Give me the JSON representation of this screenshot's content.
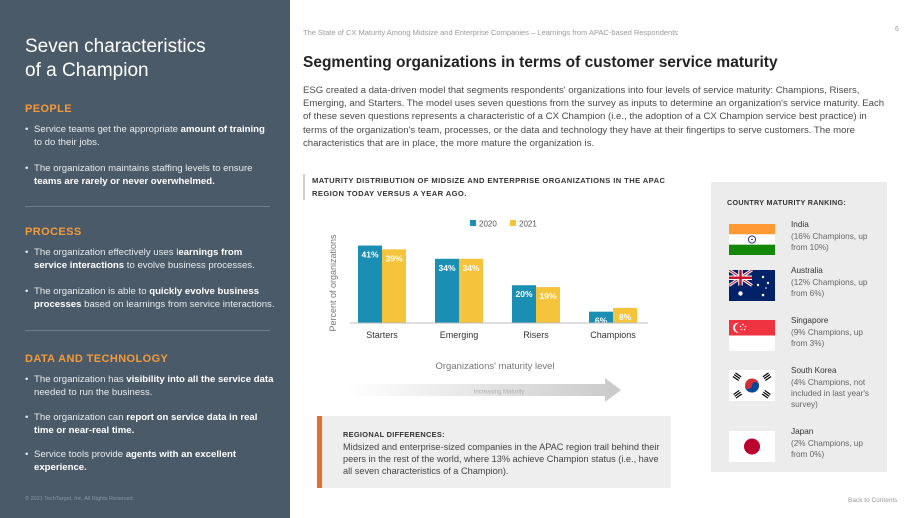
{
  "sidebar": {
    "title_line1": "Seven characteristics",
    "title_line2": "of a Champion",
    "sections": [
      {
        "heading": "PEOPLE",
        "items": [
          {
            "pre": "Service teams get the appropriate ",
            "bold": "amount of training",
            "post": " to do their jobs."
          },
          {
            "pre": "The organization maintains staffing levels to ensure ",
            "bold": "teams are rarely or never overwhelmed.",
            "post": ""
          }
        ]
      },
      {
        "heading": "PROCESS",
        "items": [
          {
            "pre": "The organization effectively uses l",
            "bold": "earnings from service interactions",
            "post": " to evolve business processes."
          },
          {
            "pre": "The organization is able to ",
            "bold": "quickly evolve business processes",
            "post": " based on learnings from service interactions."
          }
        ]
      },
      {
        "heading": "DATA AND TECHNOLOGY",
        "items": [
          {
            "pre": "The organization has ",
            "bold": "visibility into all the service data",
            "post": " needed to run the business."
          },
          {
            "pre": "The organization can ",
            "bold": "report on service data in real time or near-real time.",
            "post": ""
          },
          {
            "pre": "Service tools provide ",
            "bold": "agents with an excellent experience.",
            "post": ""
          }
        ]
      }
    ],
    "copyright": "© 2021 TechTarget, Inc. All Rights Reserved."
  },
  "header": {
    "running_title": "The State of CX Maturity Among Midsize and Enterprise Companies – Learnings from APAC-based Respondents",
    "page_number": "6"
  },
  "main": {
    "title": "Segmenting organizations in terms of customer service maturity",
    "intro": "ESG created a data-driven model that segments respondents' organizations into four levels of service maturity: Champions, Risers, Emerging, and Starters. The model uses seven questions from the survey as inputs to determine an organization's service maturity. Each of these seven questions represents a characteristic of a CX Champion (i.e., the adoption of a CX Champion service best practice) in terms of the organization's team, processes, or the data and technology they have at their fingertips to serve customers. The more characteristics that are in place, the more mature the organization is."
  },
  "arrow_label": "Increasing Maturity",
  "regional": {
    "heading": "REGIONAL DIFFERENCES:",
    "text": "Midsized and enterprise-sized companies in the APAC region trail behind their peers in the rest of the world, where 13% achieve Champion status (i.e., have all seven characteristics of a Champion)."
  },
  "ranking": {
    "title": "COUNTRY MATURITY RANKING:",
    "countries": [
      {
        "name": "India",
        "desc": "(16% Champions, up from 10%)",
        "flag": "india"
      },
      {
        "name": "Australia",
        "desc": "(12% Champions, up from 6%)",
        "flag": "australia"
      },
      {
        "name": "Singapore",
        "desc": "(9% Champions, up from 3%)",
        "flag": "singapore"
      },
      {
        "name": "South Korea",
        "desc": "(4% Champions, not included in last year's survey)",
        "flag": "south-korea"
      },
      {
        "name": "Japan",
        "desc": "(2% Champions, up from 0%)",
        "flag": "japan"
      }
    ]
  },
  "back_link": "Back to Contents",
  "colors": {
    "series_2020": "#1a8fb3",
    "series_2021": "#f5c43b",
    "sidebar_bg": "#4b5a68",
    "accent": "#f29a3a"
  },
  "chart_data": {
    "type": "bar",
    "title": "MATURITY DISTRIBUTION OF MIDSIZE AND ENTERPRISE ORGANIZATIONS IN THE APAC REGION TODAY VERSUS A YEAR AGO.",
    "categories": [
      "Starters",
      "Emerging",
      "Risers",
      "Champions"
    ],
    "series": [
      {
        "name": "2020",
        "values": [
          41,
          34,
          20,
          6
        ],
        "labels": [
          "41%",
          "34%",
          "20%",
          "6%"
        ]
      },
      {
        "name": "2021",
        "values": [
          39,
          34,
          19,
          8
        ],
        "labels": [
          "39%",
          "34%",
          "19%",
          "8%"
        ]
      }
    ],
    "xlabel": "Organizations' maturity level",
    "ylabel": "Percent of organizations",
    "ylim": [
      0,
      45
    ],
    "legend": "top",
    "grid": false
  }
}
